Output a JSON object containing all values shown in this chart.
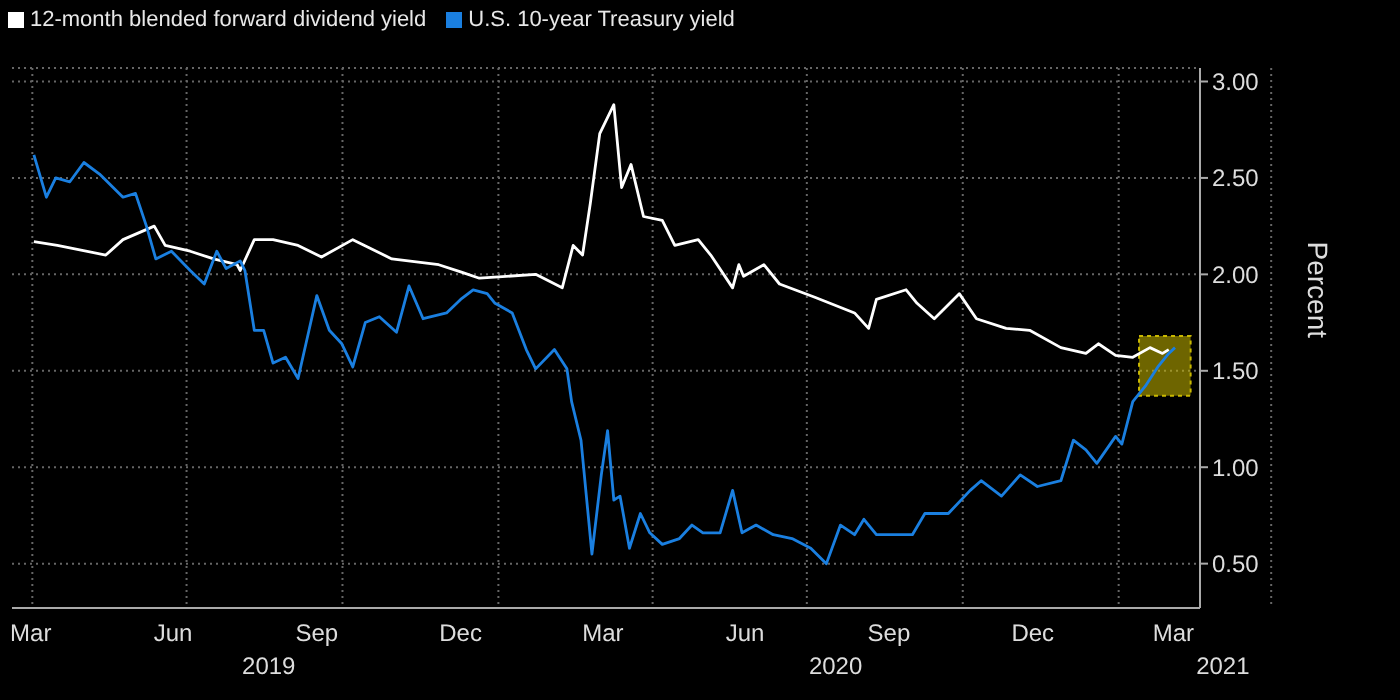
{
  "chart_data": {
    "type": "line",
    "ylabel": "Percent",
    "legend": "top left",
    "grid": true,
    "marker": "none",
    "line_style": "solid",
    "xlim": [
      "2019-03-04",
      "2021-04-02"
    ],
    "ylim": [
      0.27,
      3.07
    ],
    "yticks": [
      {
        "value": 0.5,
        "label": "0.50"
      },
      {
        "value": 1,
        "label": "1.00"
      },
      {
        "value": 1.5,
        "label": "1.50"
      },
      {
        "value": 2,
        "label": "2.00"
      },
      {
        "value": 2.5,
        "label": "2.50"
      },
      {
        "value": 3,
        "label": "3.00"
      }
    ],
    "xticks": [
      {
        "value": "2019-03-16",
        "label": "Mar"
      },
      {
        "value": "2019-06-15",
        "label": "Jun"
      },
      {
        "value": "2019-09-15",
        "label": "Sep"
      },
      {
        "value": "2019-12-16",
        "label": "Dec"
      },
      {
        "value": "2020-03-16",
        "label": "Mar"
      },
      {
        "value": "2020-06-15",
        "label": "Jun"
      },
      {
        "value": "2020-09-15",
        "label": "Sep"
      },
      {
        "value": "2020-12-16",
        "label": "Dec"
      },
      {
        "value": "2021-03-16",
        "label": "Mar"
      }
    ],
    "annotations": [
      "2019",
      "2020",
      "2021"
    ],
    "bands": [
      {
        "axis": "x",
        "from": "2021-02-22",
        "to": "2021-03-27",
        "color": "#c9b800"
      }
    ],
    "series": [
      {
        "name": "12-month blended forward dividend yield",
        "color": "#ffffff",
        "x": [
          "2019-03-18",
          "2019-04-02",
          "2019-05-03",
          "2019-05-14",
          "2019-06-03",
          "2019-06-10",
          "2019-06-26",
          "2019-07-11",
          "2019-07-26",
          "2019-07-28",
          "2019-08-06",
          "2019-08-18",
          "2019-09-03",
          "2019-09-18",
          "2019-10-08",
          "2019-11-02",
          "2019-12-02",
          "2019-12-17",
          "2019-12-28",
          "2020-02-02",
          "2020-02-19",
          "2020-02-26",
          "2020-03-03",
          "2020-03-08",
          "2020-03-14",
          "2020-03-23",
          "2020-03-28",
          "2020-04-03",
          "2020-04-11",
          "2020-04-23",
          "2020-05-01",
          "2020-05-16",
          "2020-05-24",
          "2020-06-07",
          "2020-06-11",
          "2020-06-14",
          "2020-06-27",
          "2020-07-07",
          "2020-07-30",
          "2020-08-24",
          "2020-09-02",
          "2020-09-07",
          "2020-09-26",
          "2020-10-03",
          "2020-10-14",
          "2020-10-30",
          "2020-11-10",
          "2020-11-29",
          "2020-12-14",
          "2021-01-03",
          "2021-01-19",
          "2021-01-27",
          "2021-02-07",
          "2021-02-18",
          "2021-03-01",
          "2021-03-09",
          "2021-03-13"
        ],
        "values": [
          2.17,
          2.15,
          2.1,
          2.18,
          2.25,
          2.15,
          2.12,
          2.08,
          2.05,
          2.02,
          2.18,
          2.18,
          2.15,
          2.09,
          2.18,
          2.08,
          2.05,
          2.01,
          1.98,
          2.0,
          1.93,
          2.15,
          2.1,
          2.37,
          2.73,
          2.88,
          2.45,
          2.57,
          2.3,
          2.28,
          2.15,
          2.18,
          2.1,
          1.93,
          2.05,
          1.99,
          2.05,
          1.95,
          1.88,
          1.8,
          1.72,
          1.87,
          1.92,
          1.85,
          1.77,
          1.9,
          1.77,
          1.72,
          1.71,
          1.62,
          1.59,
          1.64,
          1.58,
          1.57,
          1.62,
          1.59,
          1.61
        ]
      },
      {
        "name": "U.S. 10-year Treasury yield",
        "color": "#1a7fe0",
        "x": [
          "2019-03-18",
          "2019-03-26",
          "2019-04-01",
          "2019-04-10",
          "2019-04-19",
          "2019-04-29",
          "2019-05-14",
          "2019-05-22",
          "2019-05-29",
          "2019-06-04",
          "2019-06-14",
          "2019-06-26",
          "2019-07-05",
          "2019-07-13",
          "2019-07-19",
          "2019-07-28",
          "2019-07-31",
          "2019-08-06",
          "2019-08-12",
          "2019-08-18",
          "2019-08-26",
          "2019-09-03",
          "2019-09-10",
          "2019-09-15",
          "2019-09-23",
          "2019-10-01",
          "2019-10-08",
          "2019-10-16",
          "2019-10-25",
          "2019-11-05",
          "2019-11-13",
          "2019-11-22",
          "2019-12-07",
          "2019-12-16",
          "2019-12-24",
          "2020-01-02",
          "2020-01-07",
          "2020-01-18",
          "2020-01-27",
          "2020-02-02",
          "2020-02-14",
          "2020-02-22",
          "2020-02-25",
          "2020-03-02",
          "2020-03-09",
          "2020-03-15",
          "2020-03-19",
          "2020-03-23",
          "2020-03-27",
          "2020-04-02",
          "2020-04-09",
          "2020-04-15",
          "2020-04-23",
          "2020-05-04",
          "2020-05-12",
          "2020-05-19",
          "2020-05-30",
          "2020-06-07",
          "2020-06-13",
          "2020-06-22",
          "2020-07-03",
          "2020-07-15",
          "2020-07-27",
          "2020-08-06",
          "2020-08-15",
          "2020-08-24",
          "2020-08-30",
          "2020-09-07",
          "2020-09-30",
          "2020-10-08",
          "2020-10-23",
          "2020-11-06",
          "2020-11-13",
          "2020-11-26",
          "2020-12-08",
          "2020-12-19",
          "2021-01-03",
          "2021-01-11",
          "2021-01-19",
          "2021-01-26",
          "2021-02-07",
          "2021-02-11",
          "2021-02-18",
          "2021-02-26",
          "2021-03-06",
          "2021-03-13",
          "2021-03-17"
        ],
        "values": [
          2.62,
          2.4,
          2.5,
          2.48,
          2.58,
          2.52,
          2.4,
          2.42,
          2.25,
          2.08,
          2.12,
          2.02,
          1.95,
          2.12,
          2.03,
          2.07,
          2.02,
          1.71,
          1.71,
          1.54,
          1.57,
          1.46,
          1.71,
          1.89,
          1.71,
          1.64,
          1.52,
          1.75,
          1.78,
          1.7,
          1.94,
          1.77,
          1.8,
          1.87,
          1.92,
          1.9,
          1.85,
          1.8,
          1.61,
          1.51,
          1.61,
          1.51,
          1.34,
          1.14,
          0.55,
          0.96,
          1.19,
          0.83,
          0.85,
          0.58,
          0.76,
          0.66,
          0.6,
          0.63,
          0.7,
          0.66,
          0.66,
          0.88,
          0.66,
          0.7,
          0.65,
          0.63,
          0.58,
          0.5,
          0.7,
          0.65,
          0.73,
          0.65,
          0.65,
          0.76,
          0.76,
          0.88,
          0.93,
          0.85,
          0.96,
          0.9,
          0.93,
          1.14,
          1.09,
          1.02,
          1.16,
          1.12,
          1.34,
          1.42,
          1.52,
          1.59,
          1.62
        ]
      }
    ]
  }
}
